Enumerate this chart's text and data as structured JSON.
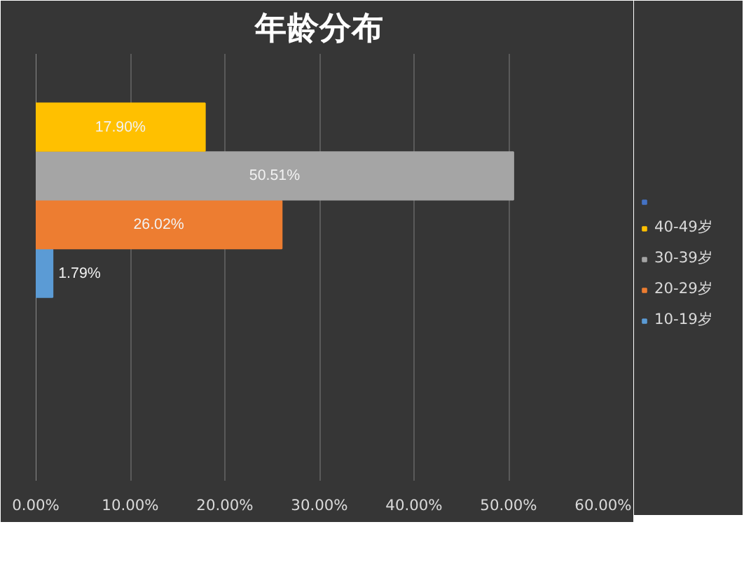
{
  "chart_data": {
    "type": "bar",
    "orientation": "horizontal",
    "title": "年龄分布",
    "categories": [
      null
    ],
    "series": [
      {
        "name": "10-19岁",
        "color": "#5b9bd5",
        "values": [
          1.79
        ],
        "value_labels": [
          "1.79%"
        ]
      },
      {
        "name": "20-29岁",
        "color": "#ed7d31",
        "values": [
          26.02
        ],
        "value_labels": [
          "26.02%"
        ]
      },
      {
        "name": "30-39岁",
        "color": "#a5a5a5",
        "values": [
          50.51
        ],
        "value_labels": [
          "50.51%"
        ]
      },
      {
        "name": "40-49岁",
        "color": "#ffc000",
        "values": [
          17.9
        ],
        "value_labels": [
          "17.90%"
        ]
      },
      {
        "color": "#4472c4",
        "values": [
          null
        ]
      }
    ],
    "xlim": [
      0,
      60
    ],
    "xticks": [
      {
        "value": 0,
        "label": "0.00%"
      },
      {
        "value": 10,
        "label": "10.00%"
      },
      {
        "value": 20,
        "label": "20.00%"
      },
      {
        "value": 30,
        "label": "30.00%"
      },
      {
        "value": 40,
        "label": "40.00%"
      },
      {
        "value": 50,
        "label": "50.00%"
      },
      {
        "value": 60,
        "label": "60.00%"
      }
    ],
    "grid": "x",
    "legend": "right"
  }
}
